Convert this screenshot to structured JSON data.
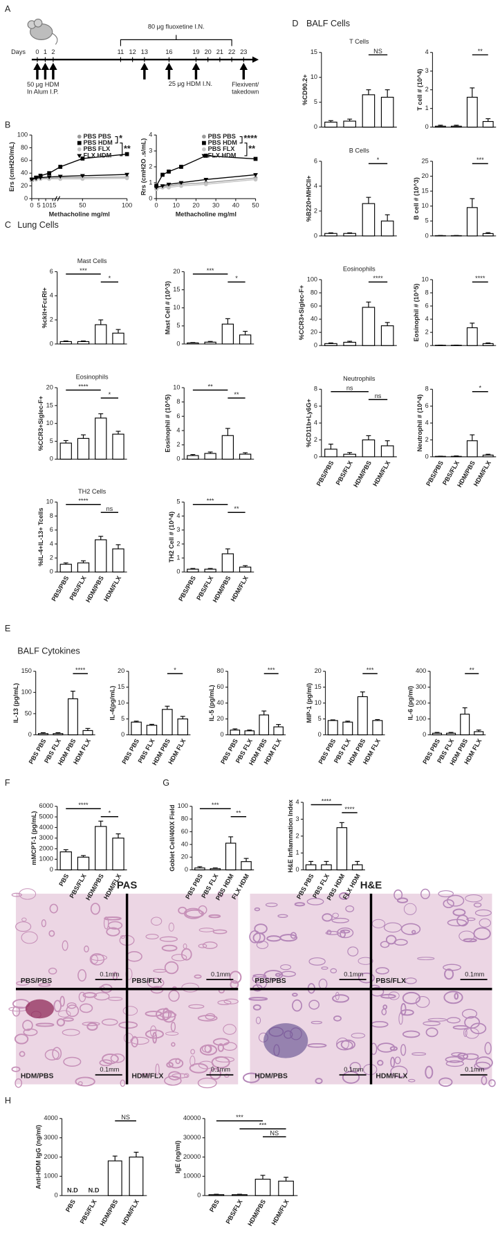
{
  "panel_labels": {
    "a": "A",
    "b": "B",
    "c": "C",
    "d": "D",
    "e": "E",
    "f": "F",
    "g": "G",
    "h": "H"
  },
  "headers": {
    "lung": "Lung Cells",
    "balf_cells": "BALF Cells",
    "cytokines": "BALF Cytokines"
  },
  "timeline": {
    "label": "Days",
    "days": [
      0,
      1,
      2,
      11,
      12,
      13,
      16,
      19,
      20,
      21,
      22,
      23
    ],
    "brace_label": "80 μg fluoxetine I.N.",
    "hdm_ip": [
      "50 μg HDM",
      "In Alum I.P."
    ],
    "hdm_in": "25 μg HDM I.N.",
    "takedown": [
      "Flexivent/",
      "takedown"
    ]
  },
  "histology": [
    {
      "title": "PAS",
      "panels": [
        "PBS/PBS",
        "PBS/FLX",
        "HDM/PBS",
        "HDM/FLX"
      ],
      "scale": "0.1mm"
    },
    {
      "title": "H&E",
      "panels": [
        "PBS/PBS",
        "PBS/FLX",
        "HDM/PBS",
        "HDM/FLX"
      ],
      "scale": "0.1mm"
    }
  ],
  "chart_data": [
    {
      "type": "line",
      "ylabel": "Ers (cmH2O/mL)",
      "xlabel": "Methacholine mg/ml",
      "x": [
        0,
        3.125,
        6.25,
        12.5,
        25,
        50,
        100
      ],
      "xlim": [
        0,
        100
      ],
      "xticks": [
        0,
        5,
        10,
        15,
        50,
        100
      ],
      "xbreak": [
        15,
        25
      ],
      "ylim": [
        0,
        100
      ],
      "yticks": [
        0,
        20,
        40,
        60,
        80,
        100
      ],
      "annotations": [
        "*",
        "**"
      ],
      "series": [
        {
          "name": "PBS PBS",
          "color": "#9a9a9a",
          "marker": "circle",
          "values": [
            30,
            31,
            32,
            32,
            33,
            33,
            34
          ]
        },
        {
          "name": "PBS HDM",
          "color": "#000000",
          "marker": "square",
          "values": [
            30,
            33,
            36,
            40,
            50,
            63,
            70
          ]
        },
        {
          "name": "PBS FLX",
          "color": "#c4c4c4",
          "marker": "circle",
          "values": [
            29,
            30,
            31,
            31,
            31,
            31,
            32
          ]
        },
        {
          "name": "FLX HDM",
          "color": "#000000",
          "marker": "triangle",
          "values": [
            30,
            32,
            33,
            34,
            35,
            36,
            38
          ]
        }
      ]
    },
    {
      "type": "line",
      "ylabel": "Rrs (cmH2O .s/mL)",
      "xlabel": "Methacholine mg/ml",
      "x": [
        0,
        3.125,
        6.25,
        12.5,
        25,
        50
      ],
      "xlim": [
        0,
        50
      ],
      "xticks": [
        0,
        10,
        20,
        30,
        40,
        50
      ],
      "ylim": [
        0,
        4
      ],
      "yticks": [
        0,
        1,
        2,
        3,
        4
      ],
      "annotations": [
        "****",
        "**"
      ],
      "series": [
        {
          "name": "PBS PBS",
          "color": "#9a9a9a",
          "marker": "circle",
          "values": [
            0.6,
            0.7,
            0.8,
            0.9,
            1.0,
            1.3
          ]
        },
        {
          "name": "PBS HDM",
          "color": "#000000",
          "marker": "square",
          "values": [
            0.8,
            1.5,
            1.7,
            2.0,
            2.7,
            2.5
          ]
        },
        {
          "name": "PBS FLX",
          "color": "#c4c4c4",
          "marker": "circle",
          "values": [
            0.6,
            0.7,
            0.7,
            0.8,
            0.9,
            1.2
          ]
        },
        {
          "name": "FLX HDM",
          "color": "#000000",
          "marker": "triangle",
          "values": [
            0.7,
            0.8,
            0.9,
            1.0,
            1.2,
            1.5
          ]
        }
      ]
    },
    {
      "type": "bar",
      "title": "Mast Cells",
      "ylabel": "%ckit+FcεRI+",
      "categories": [
        null,
        null,
        null,
        null
      ],
      "values": [
        0.2,
        0.2,
        1.6,
        0.9
      ],
      "errors": [
        0.05,
        0.05,
        0.4,
        0.3
      ],
      "ylim": [
        0,
        6
      ],
      "yticks": [
        0,
        2,
        4,
        6
      ],
      "sig": [
        {
          "between": [
            0,
            2
          ],
          "label": "***"
        },
        {
          "between": [
            2,
            3
          ],
          "label": "*"
        }
      ]
    },
    {
      "type": "bar",
      "ylabel": "Mast Cell # (10^3)",
      "categories": [
        null,
        null,
        null,
        null
      ],
      "values": [
        0.3,
        0.5,
        5.5,
        2.5
      ],
      "errors": [
        0.1,
        0.2,
        1.5,
        1
      ],
      "ylim": [
        0,
        20
      ],
      "yticks": [
        0,
        5,
        10,
        15,
        20
      ],
      "sig": [
        {
          "between": [
            0,
            2
          ],
          "label": "***"
        },
        {
          "between": [
            2,
            3
          ],
          "label": "*"
        }
      ]
    },
    {
      "type": "bar",
      "title": "Eosinophils",
      "ylabel": "%CCR3+Siglec-F+",
      "categories": [
        null,
        null,
        null,
        null
      ],
      "values": [
        4.5,
        5.8,
        11.5,
        7
      ],
      "errors": [
        0.7,
        1,
        1.2,
        0.8
      ],
      "ylim": [
        0,
        20
      ],
      "yticks": [
        0,
        5,
        10,
        15,
        20
      ],
      "sig": [
        {
          "between": [
            0,
            2
          ],
          "label": "****"
        },
        {
          "between": [
            2,
            3
          ],
          "label": "*"
        }
      ]
    },
    {
      "type": "bar",
      "ylabel": "Eosinophil # (10^5)",
      "categories": [
        null,
        null,
        null,
        null
      ],
      "values": [
        0.5,
        0.8,
        3.3,
        0.7
      ],
      "errors": [
        0.15,
        0.2,
        1,
        0.2
      ],
      "ylim": [
        0,
        10
      ],
      "yticks": [
        0,
        2,
        4,
        6,
        8,
        10
      ],
      "sig": [
        {
          "between": [
            0,
            2
          ],
          "label": "**"
        },
        {
          "between": [
            2,
            3
          ],
          "label": "**"
        }
      ]
    },
    {
      "type": "bar",
      "title": "TH2 Cells",
      "ylabel": "%IL-4+IL-13+ Tcells",
      "categories": [
        "PBS/PBS",
        "PBS/FLX",
        "HDM/PBS",
        "HDM/FLX"
      ],
      "values": [
        1.1,
        1.3,
        4.6,
        3.3
      ],
      "errors": [
        0.2,
        0.3,
        0.5,
        0.6
      ],
      "ylim": [
        0,
        10
      ],
      "yticks": [
        0,
        2,
        4,
        6,
        8,
        10
      ],
      "sig": [
        {
          "between": [
            0,
            2
          ],
          "label": "****"
        },
        {
          "between": [
            2,
            3
          ],
          "label": "ns"
        }
      ]
    },
    {
      "type": "bar",
      "ylabel": "TH2 Cell # (10^4)",
      "categories": [
        "PBS/PBS",
        "PBS/FLX",
        "HDM/PBS",
        "HDM/FLX"
      ],
      "values": [
        0.2,
        0.2,
        1.3,
        0.35
      ],
      "errors": [
        0.05,
        0.05,
        0.35,
        0.1
      ],
      "ylim": [
        0,
        5
      ],
      "yticks": [
        0,
        1,
        2,
        3,
        4,
        5
      ],
      "sig": [
        {
          "between": [
            0,
            2
          ],
          "label": "***"
        },
        {
          "between": [
            2,
            3
          ],
          "label": "**"
        }
      ]
    },
    {
      "type": "bar",
      "title": "T Cells",
      "ylabel": "%CD90.2+",
      "categories": [
        null,
        null,
        null,
        null
      ],
      "values": [
        1,
        1.2,
        6.5,
        6
      ],
      "errors": [
        0.3,
        0.4,
        1,
        1.5
      ],
      "ylim": [
        0,
        15
      ],
      "yticks": [
        0,
        5,
        10,
        15
      ],
      "sig": [
        {
          "between": [
            2,
            3
          ],
          "label": "NS"
        }
      ]
    },
    {
      "type": "bar",
      "ylabel": "T cell # (10^4)",
      "categories": [
        null,
        null,
        null,
        null
      ],
      "values": [
        0.05,
        0.05,
        1.6,
        0.3
      ],
      "errors": [
        0.05,
        0.05,
        0.5,
        0.15
      ],
      "ylim": [
        0,
        4
      ],
      "yticks": [
        0,
        1,
        2,
        3,
        4
      ],
      "sig": [
        {
          "between": [
            2,
            3
          ],
          "label": "**"
        }
      ]
    },
    {
      "type": "bar",
      "title": "B Cells",
      "ylabel": "%B220+MHCII+",
      "categories": [
        null,
        null,
        null,
        null
      ],
      "values": [
        0.2,
        0.2,
        2.6,
        1.2
      ],
      "errors": [
        0.05,
        0.05,
        0.5,
        0.5
      ],
      "ylim": [
        0,
        6
      ],
      "yticks": [
        0,
        2,
        4,
        6
      ],
      "sig": [
        {
          "between": [
            2,
            3
          ],
          "label": "*"
        }
      ]
    },
    {
      "type": "bar",
      "ylabel": "B cell # (10^3)",
      "categories": [
        null,
        null,
        null,
        null
      ],
      "values": [
        0.1,
        0.1,
        9.5,
        0.8
      ],
      "errors": [
        0.05,
        0.05,
        3,
        0.3
      ],
      "ylim": [
        0,
        25
      ],
      "yticks": [
        0,
        5,
        10,
        15,
        20,
        25
      ],
      "sig": [
        {
          "between": [
            2,
            3
          ],
          "label": "***"
        }
      ]
    },
    {
      "type": "bar",
      "title": "Eosinophils",
      "ylabel": "%CCR3+Siglec-F+",
      "categories": [
        null,
        null,
        null,
        null
      ],
      "values": [
        3,
        5,
        58,
        30
      ],
      "errors": [
        1,
        1.5,
        8,
        5
      ],
      "ylim": [
        0,
        100
      ],
      "yticks": [
        0,
        20,
        40,
        60,
        80,
        100
      ],
      "sig": [
        {
          "between": [
            2,
            3
          ],
          "label": "****"
        }
      ]
    },
    {
      "type": "bar",
      "ylabel": "Eosinophil # (10^5)",
      "categories": [
        null,
        null,
        null,
        null
      ],
      "values": [
        0.05,
        0.05,
        2.7,
        0.3
      ],
      "errors": [
        0.02,
        0.02,
        0.7,
        0.1
      ],
      "ylim": [
        0,
        10
      ],
      "yticks": [
        0,
        2,
        4,
        6,
        8,
        10
      ],
      "sig": [
        {
          "between": [
            2,
            3
          ],
          "label": "****"
        }
      ]
    },
    {
      "type": "bar",
      "title": "Neutrophils",
      "ylabel": "%CD11b+Ly6G+",
      "categories": [
        "PBS/PBS",
        "PBS/FLX",
        "HDM/PBS",
        "HDM/FLX"
      ],
      "values": [
        0.9,
        0.3,
        2.0,
        1.3
      ],
      "errors": [
        0.6,
        0.2,
        0.5,
        0.6
      ],
      "ylim": [
        0,
        8
      ],
      "yticks": [
        0,
        2,
        4,
        6,
        8
      ],
      "sig": [
        {
          "between": [
            0,
            2
          ],
          "label": "ns"
        },
        {
          "between": [
            2,
            3
          ],
          "label": "ns"
        }
      ]
    },
    {
      "type": "bar",
      "ylabel": "Neutrophil # (10^4)",
      "categories": [
        "PBS/PBS",
        "PBS/FLX",
        "HDM/PBS",
        "HDM/FLX"
      ],
      "values": [
        0.05,
        0.05,
        1.9,
        0.2
      ],
      "errors": [
        0.02,
        0.05,
        0.7,
        0.1
      ],
      "ylim": [
        0,
        8
      ],
      "yticks": [
        0,
        2,
        4,
        6,
        8
      ],
      "sig": [
        {
          "between": [
            2,
            3
          ],
          "label": "*"
        }
      ]
    },
    {
      "type": "bar",
      "ylabel": "IL-13 (pg/mL)",
      "categories": [
        "PBS PBS",
        "PBS FLX",
        "HDM PBS",
        "HDM FLX"
      ],
      "values": [
        3,
        3,
        85,
        10
      ],
      "errors": [
        2,
        2,
        18,
        5
      ],
      "ylim": [
        0,
        150
      ],
      "yticks": [
        0,
        50,
        100,
        150
      ],
      "sig": [
        {
          "between": [
            2,
            3
          ],
          "label": "****"
        }
      ]
    },
    {
      "type": "bar",
      "ylabel": "IL-4(pg/mL)",
      "categories": [
        "PBS PBS",
        "PBS FLX",
        "HDM PBS",
        "HDM FLX"
      ],
      "values": [
        4,
        3,
        8,
        5
      ],
      "errors": [
        0.3,
        0.3,
        1,
        0.8
      ],
      "ylim": [
        0,
        20
      ],
      "yticks": [
        0,
        5,
        10,
        15,
        20
      ],
      "sig": [
        {
          "between": [
            2,
            3
          ],
          "label": "*"
        }
      ]
    },
    {
      "type": "bar",
      "ylabel": "IL-5 (pg/mL)",
      "categories": [
        "PBS PBS",
        "PBS FLX",
        "HDM PBS",
        "HDM FLX"
      ],
      "values": [
        6,
        5,
        25,
        10
      ],
      "errors": [
        1.5,
        1,
        5,
        3
      ],
      "ylim": [
        0,
        80
      ],
      "yticks": [
        0,
        20,
        40,
        60,
        80
      ],
      "sig": [
        {
          "between": [
            2,
            3
          ],
          "label": "***"
        }
      ]
    },
    {
      "type": "bar",
      "ylabel": "MIP-1 (pg/ml)",
      "categories": [
        "PBS PBS",
        "PBS FLX",
        "HDM PBS",
        "HDM FLX"
      ],
      "values": [
        4.5,
        4,
        12,
        4.5
      ],
      "errors": [
        0.2,
        0.3,
        1.5,
        0.3
      ],
      "ylim": [
        0,
        20
      ],
      "yticks": [
        0,
        5,
        10,
        15,
        20
      ],
      "sig": [
        {
          "between": [
            2,
            3
          ],
          "label": "***"
        }
      ]
    },
    {
      "type": "bar",
      "ylabel": "IL-6 (pg/ml)",
      "categories": [
        "PBS PBS",
        "PBS FLX",
        "HDM PBS",
        "HDM FLX"
      ],
      "values": [
        10,
        10,
        130,
        20
      ],
      "errors": [
        5,
        5,
        40,
        10
      ],
      "ylim": [
        0,
        400
      ],
      "yticks": [
        0,
        100,
        200,
        300,
        400
      ],
      "sig": [
        {
          "between": [
            2,
            3
          ],
          "label": "**"
        }
      ]
    },
    {
      "type": "bar",
      "ylabel": "mMCPT-1 (pg/mL)",
      "categories": [
        "PBS",
        "PBS/FLX",
        "HDM/PBS",
        "HDM/FLX"
      ],
      "values": [
        1700,
        1200,
        4100,
        3000
      ],
      "errors": [
        200,
        150,
        500,
        400
      ],
      "ylim": [
        0,
        6000
      ],
      "yticks": [
        0,
        1000,
        2000,
        3000,
        4000,
        5000,
        6000
      ],
      "sig": [
        {
          "between": [
            0,
            2
          ],
          "label": "****"
        },
        {
          "between": [
            2,
            3
          ],
          "label": "*"
        }
      ]
    },
    {
      "type": "bar",
      "ylabel": "Goblet Cell/400X  Field",
      "categories": [
        "PBS PBS",
        "PBS FLX",
        "PBS HDM",
        "FLX HDM"
      ],
      "values": [
        3,
        2,
        42,
        13
      ],
      "errors": [
        2,
        1,
        10,
        5
      ],
      "ylim": [
        0,
        100
      ],
      "yticks": [
        0,
        20,
        40,
        60,
        80,
        100
      ],
      "sig": [
        {
          "between": [
            0,
            2
          ],
          "label": "***"
        },
        {
          "between": [
            2,
            3
          ],
          "label": "**"
        }
      ]
    },
    {
      "type": "bar",
      "ylabel": "H&E Inflammation Index",
      "categories": [
        "PBS PBS",
        "PBS FLX",
        "PBS HDM",
        "FLX HDM"
      ],
      "values": [
        0.3,
        0.3,
        2.5,
        0.3
      ],
      "errors": [
        0.2,
        0.2,
        0.3,
        0.2
      ],
      "ylim": [
        0,
        4
      ],
      "yticks": [
        0,
        1,
        2,
        3,
        4
      ],
      "sig": [
        {
          "between": [
            0,
            2
          ],
          "label": "****"
        },
        {
          "between": [
            2,
            3
          ],
          "label": "****"
        }
      ]
    },
    {
      "type": "bar",
      "ylabel": "Anti-HDM IgG (ng/ml)",
      "categories": [
        "PBS",
        "PBS/FLX",
        "HDM/PBS",
        "HDM/FLX"
      ],
      "values": [
        null,
        null,
        1800,
        2000
      ],
      "value_labels": [
        "N.D",
        "N.D",
        null,
        null
      ],
      "errors": [
        null,
        null,
        250,
        250
      ],
      "ylim": [
        0,
        4000
      ],
      "yticks": [
        0,
        1000,
        2000,
        3000,
        4000
      ],
      "sig": [
        {
          "between": [
            2,
            3
          ],
          "label": "NS"
        }
      ]
    },
    {
      "type": "bar",
      "ylabel": "IgE (ng/ml)",
      "categories": [
        "PBS",
        "PBS/FLX",
        "HDM/PBS",
        "HDM/FLX"
      ],
      "values": [
        500,
        500,
        8500,
        7500
      ],
      "errors": [
        200,
        200,
        2000,
        2000
      ],
      "ylim": [
        0,
        40000
      ],
      "yticks": [
        0,
        10000,
        20000,
        30000,
        40000
      ],
      "sig": [
        {
          "between": [
            0,
            2
          ],
          "label": "***"
        },
        {
          "between": [
            1,
            3
          ],
          "label": "***"
        },
        {
          "between": [
            2,
            3
          ],
          "label": "NS"
        }
      ]
    }
  ]
}
